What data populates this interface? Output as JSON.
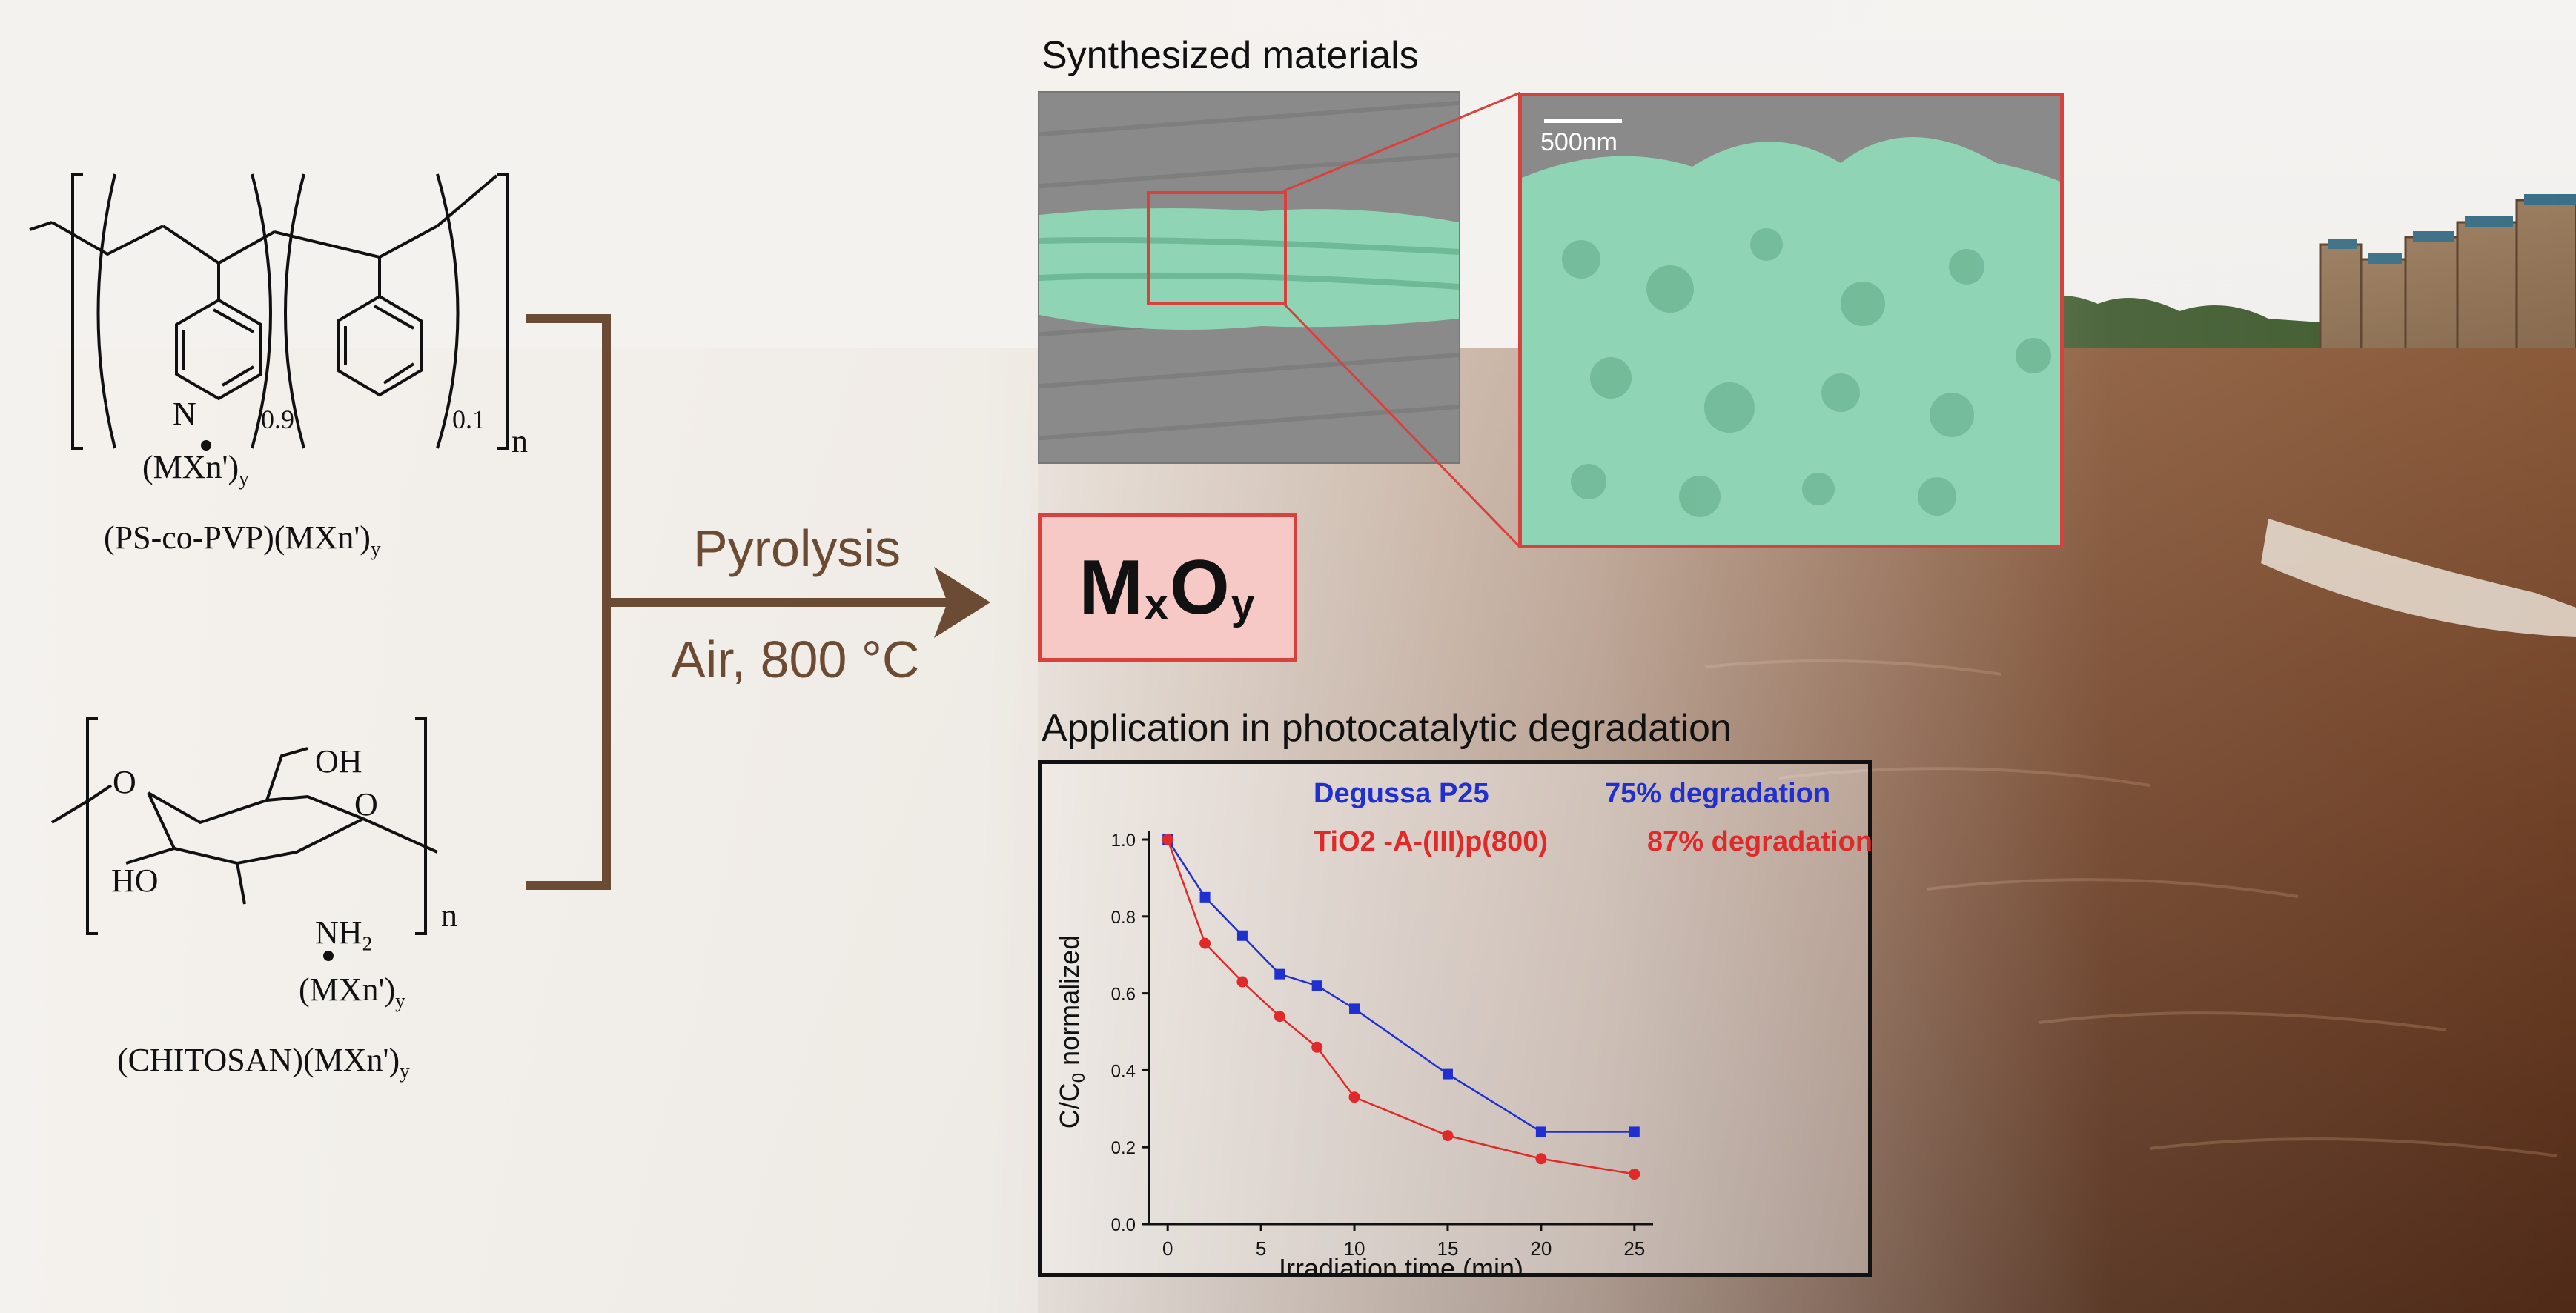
{
  "colors": {
    "arrow_brown": "#6b4b34",
    "accent_red": "#d9413e",
    "product_fill": "#f6c8c6",
    "series_blue": "#1f2fd0",
    "series_red": "#e02a2a",
    "sem_green": "#8fd4b4"
  },
  "polymer1": {
    "n1": "0.9",
    "n2": "0.1",
    "n_outer": "n",
    "N_label": "N",
    "ligand_main": "(MXn')",
    "ligand_sub": "y",
    "name_main": "(PS-co-PVP)(MXn')",
    "name_sub": "y"
  },
  "polymer2": {
    "OH_label": "OH",
    "O_ring": "O",
    "O_link": "O",
    "HO_label": "HO",
    "NH_main": "NH",
    "NH_sub": "2",
    "n_outer": "n",
    "ligand_main": "(MXn')",
    "ligand_sub": "y",
    "name_main": "(CHITOSAN)(MXn')",
    "name_sub": "y"
  },
  "process": {
    "step": "Pyrolysis",
    "condition": "Air, 800 °C"
  },
  "product": {
    "M": "M",
    "x": "x",
    "O": "O",
    "y": "y"
  },
  "synthesized": {
    "title": "Synthesized materials",
    "scale_bar": "500nm"
  },
  "application": {
    "title": "Application in photocatalytic degradation"
  },
  "chart_data": {
    "type": "line",
    "xlabel": "Irradiation time (min)",
    "ylabel_main": "C/C",
    "ylabel_sub": "0",
    "ylabel_rest": " normalized",
    "xlim": [
      -1,
      26
    ],
    "ylim": [
      0.0,
      1.0
    ],
    "xticks": [
      0,
      5,
      10,
      15,
      20,
      25
    ],
    "yticks": [
      0.0,
      0.2,
      0.4,
      0.6,
      0.8,
      1.0
    ],
    "ytick_labels": [
      "0.0",
      "0.2",
      "0.4",
      "0.6",
      "0.8",
      "1.0"
    ],
    "series": [
      {
        "name": "Degussa P25",
        "annotation": "75% degradation",
        "color": "#1f2fd0",
        "marker": "square",
        "x": [
          0,
          2,
          4,
          6,
          8,
          10,
          15,
          20,
          25
        ],
        "y": [
          1.0,
          0.85,
          0.75,
          0.65,
          0.62,
          0.56,
          0.39,
          0.24,
          0.24
        ]
      },
      {
        "name": "TiO2 -A-(III)p(800)",
        "annotation": "87% degradation",
        "color": "#e02a2a",
        "marker": "circle",
        "x": [
          0,
          2,
          4,
          6,
          8,
          10,
          15,
          20,
          25
        ],
        "y": [
          1.0,
          0.73,
          0.63,
          0.54,
          0.46,
          0.33,
          0.23,
          0.17,
          0.13
        ]
      }
    ]
  }
}
